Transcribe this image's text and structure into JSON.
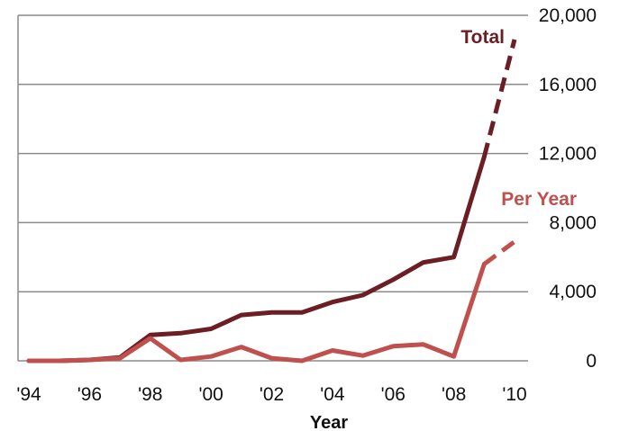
{
  "chart_data": {
    "type": "line",
    "title": "",
    "xlabel": "Year",
    "ylabel": "",
    "x": [
      1994,
      1995,
      1996,
      1997,
      1998,
      1999,
      2000,
      2001,
      2002,
      2003,
      2004,
      2005,
      2006,
      2007,
      2008,
      2009,
      2010
    ],
    "x_tick_labels": [
      "'94",
      "'96",
      "'98",
      "'00",
      "'02",
      "'04",
      "'06",
      "'08",
      "'10"
    ],
    "x_tick_values": [
      1994,
      1996,
      1998,
      2000,
      2002,
      2004,
      2006,
      2008,
      2010
    ],
    "y_tick_labels": [
      "0",
      "4,000",
      "8,000",
      "12,000",
      "16,000",
      "20,000"
    ],
    "y_tick_values": [
      0,
      4000,
      8000,
      12000,
      16000,
      20000
    ],
    "ylim": [
      0,
      20000
    ],
    "xlim": [
      1994,
      2010
    ],
    "grid": true,
    "y_axis_side": "right",
    "series": [
      {
        "name": "Total",
        "color": "#6b1f24",
        "values": [
          0,
          0,
          50,
          200,
          1500,
          1600,
          1850,
          2650,
          2800,
          2800,
          3400,
          3800,
          4700,
          5700,
          6000,
          11800,
          18600
        ],
        "projected_from": 2009
      },
      {
        "name": "Per Year",
        "color": "#c0504d",
        "values": [
          0,
          0,
          50,
          150,
          1300,
          50,
          250,
          800,
          150,
          0,
          600,
          300,
          850,
          950,
          250,
          5600,
          6900
        ],
        "projected_from": 2009
      }
    ]
  }
}
